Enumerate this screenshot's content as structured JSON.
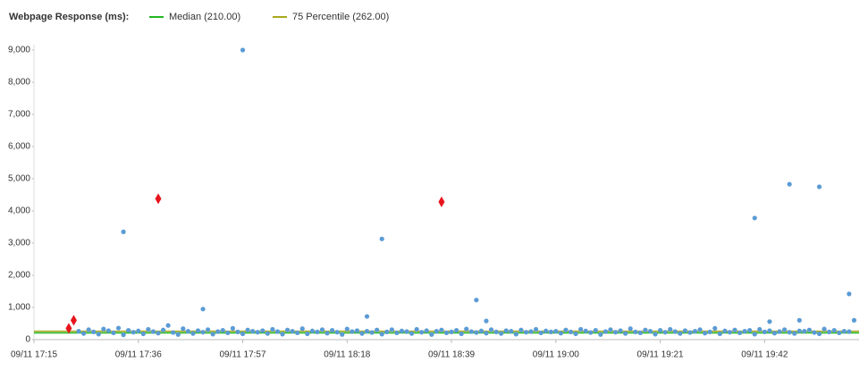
{
  "chart_data": {
    "type": "scatter",
    "title": "Webpage Response (ms):",
    "xlim": [
      "09/11 17:15",
      "09/11 20:01"
    ],
    "xticks": [
      "09/11 17:15",
      "09/11 17:36",
      "09/11 17:57",
      "09/11 18:18",
      "09/11 18:39",
      "09/11 19:00",
      "09/11 19:21",
      "09/11 19:42"
    ],
    "ylim": [
      0,
      9000
    ],
    "yticks": [
      0,
      {
        "value": 1000,
        "label": "1,000"
      },
      {
        "value": 2000,
        "label": "2,000"
      },
      {
        "value": 3000,
        "label": "3,000"
      },
      {
        "value": 4000,
        "label": "4,000"
      },
      {
        "value": 5000,
        "label": "5,000"
      },
      {
        "value": 6000,
        "label": "6,000"
      },
      {
        "value": 7000,
        "label": "7,000"
      },
      {
        "value": 8000,
        "label": "8,000"
      },
      {
        "value": 9000,
        "label": "9,000"
      }
    ],
    "reference_lines": [
      {
        "name": "Median (210.00)",
        "color": "#22b822",
        "value": 210
      },
      {
        "name": "75 Percentile (262.00)",
        "color": "#a8a81c",
        "value": 262
      }
    ],
    "series": [
      {
        "color": "#5b9bd5",
        "marker": "circle",
        "x": [
          "09/11 17:24",
          "09/11 17:25",
          "09/11 17:26",
          "09/11 17:27",
          "09/11 17:28",
          "09/11 17:29",
          "09/11 17:30",
          "09/11 17:31",
          "09/11 17:32",
          "09/11 17:33",
          "09/11 17:34",
          "09/11 17:35",
          "09/11 17:36",
          "09/11 17:37",
          "09/11 17:38",
          "09/11 17:39",
          "09/11 17:40",
          "09/11 17:41",
          "09/11 17:42",
          "09/11 17:43",
          "09/11 17:44",
          "09/11 17:45",
          "09/11 17:46",
          "09/11 17:47",
          "09/11 17:48",
          "09/11 17:49",
          "09/11 17:50",
          "09/11 17:51",
          "09/11 17:52",
          "09/11 17:53",
          "09/11 17:54",
          "09/11 17:55",
          "09/11 17:56",
          "09/11 17:57",
          "09/11 17:58",
          "09/11 17:59",
          "09/11 18:00",
          "09/11 18:01",
          "09/11 18:02",
          "09/11 18:03",
          "09/11 18:04",
          "09/11 18:05",
          "09/11 18:06",
          "09/11 18:07",
          "09/11 18:08",
          "09/11 18:09",
          "09/11 18:10",
          "09/11 18:11",
          "09/11 18:12",
          "09/11 18:13",
          "09/11 18:14",
          "09/11 18:15",
          "09/11 18:16",
          "09/11 18:17",
          "09/11 18:18",
          "09/11 18:19",
          "09/11 18:20",
          "09/11 18:21",
          "09/11 18:22",
          "09/11 18:23",
          "09/11 18:24",
          "09/11 18:25",
          "09/11 18:26",
          "09/11 18:27",
          "09/11 18:28",
          "09/11 18:29",
          "09/11 18:30",
          "09/11 18:31",
          "09/11 18:32",
          "09/11 18:33",
          "09/11 18:34",
          "09/11 18:35",
          "09/11 18:36",
          "09/11 18:37",
          "09/11 18:38",
          "09/11 18:39",
          "09/11 18:40",
          "09/11 18:41",
          "09/11 18:42",
          "09/11 18:43",
          "09/11 18:44",
          "09/11 18:45",
          "09/11 18:46",
          "09/11 18:47",
          "09/11 18:48",
          "09/11 18:49",
          "09/11 18:50",
          "09/11 18:51",
          "09/11 18:52",
          "09/11 18:53",
          "09/11 18:54",
          "09/11 18:55",
          "09/11 18:56",
          "09/11 18:57",
          "09/11 18:58",
          "09/11 18:59",
          "09/11 19:00",
          "09/11 19:01",
          "09/11 19:02",
          "09/11 19:03",
          "09/11 19:04",
          "09/11 19:05",
          "09/11 19:06",
          "09/11 19:07",
          "09/11 19:08",
          "09/11 19:09",
          "09/11 19:10",
          "09/11 19:11",
          "09/11 19:12",
          "09/11 19:13",
          "09/11 19:14",
          "09/11 19:15",
          "09/11 19:16",
          "09/11 19:17",
          "09/11 19:18",
          "09/11 19:19",
          "09/11 19:20",
          "09/11 19:21",
          "09/11 19:22",
          "09/11 19:23",
          "09/11 19:24",
          "09/11 19:25",
          "09/11 19:26",
          "09/11 19:27",
          "09/11 19:28",
          "09/11 19:29",
          "09/11 19:30",
          "09/11 19:31",
          "09/11 19:32",
          "09/11 19:33",
          "09/11 19:34",
          "09/11 19:35",
          "09/11 19:36",
          "09/11 19:37",
          "09/11 19:38",
          "09/11 19:39",
          "09/11 19:40",
          "09/11 19:41",
          "09/11 19:42",
          "09/11 19:43",
          "09/11 19:44",
          "09/11 19:45",
          "09/11 19:46",
          "09/11 19:47",
          "09/11 19:48",
          "09/11 19:49",
          "09/11 19:50",
          "09/11 19:51",
          "09/11 19:52",
          "09/11 19:53",
          "09/11 19:54",
          "09/11 19:55",
          "09/11 19:56",
          "09/11 19:57",
          "09/11 19:58",
          "09/11 19:59",
          "09/11 17:57",
          "09/11 17:33",
          "09/11 17:49",
          "09/11 18:25",
          "09/11 18:22",
          "09/11 18:44",
          "09/11 18:46",
          "09/11 19:40",
          "09/11 19:47",
          "09/11 19:53",
          "09/11 19:43",
          "09/11 19:49",
          "09/11 19:59",
          "09/11 20:00"
        ],
        "values": [
          260,
          190,
          310,
          240,
          170,
          330,
          280,
          210,
          360,
          150,
          290,
          230,
          270,
          180,
          320,
          250,
          200,
          300,
          440,
          220,
          160,
          340,
          260,
          190,
          280,
          230,
          310,
          170,
          250,
          290,
          210,
          350,
          240,
          180,
          300,
          260,
          230,
          280,
          190,
          320,
          250,
          170,
          300,
          260,
          210,
          340,
          180,
          270,
          240,
          310,
          200,
          290,
          230,
          160,
          330,
          250,
          280,
          190,
          260,
          220,
          300,
          170,
          240,
          310,
          210,
          270,
          250,
          190,
          320,
          230,
          280,
          160,
          260,
          300,
          210,
          240,
          290,
          180,
          330,
          250,
          220,
          270,
          200,
          310,
          240,
          190,
          280,
          260,
          170,
          300,
          230,
          250,
          320,
          210,
          270,
          240,
          260,
          200,
          300,
          240,
          180,
          320,
          270,
          220,
          290,
          160,
          250,
          310,
          230,
          280,
          190,
          340,
          240,
          210,
          300,
          260,
          170,
          290,
          230,
          320,
          250,
          190,
          280,
          220,
          260,
          310,
          200,
          240,
          350,
          180,
          270,
          230,
          300,
          210,
          260,
          290,
          170,
          320,
          240,
          280,
          200,
          250,
          310,
          230,
          190,
          270,
          260,
          300,
          220,
          180,
          330,
          240,
          290,
          210,
          260,
          250,
          9000,
          3350,
          950,
          3130,
          720,
          1230,
          580,
          3780,
          4830,
          4750,
          560,
          600,
          1420,
          600
        ]
      },
      {
        "color": "#e8141c",
        "marker": "diamond",
        "x": [
          "09/11 17:22",
          "09/11 17:23",
          "09/11 17:40",
          "09/11 18:37"
        ],
        "values": [
          350,
          600,
          4380,
          4280
        ]
      }
    ]
  }
}
